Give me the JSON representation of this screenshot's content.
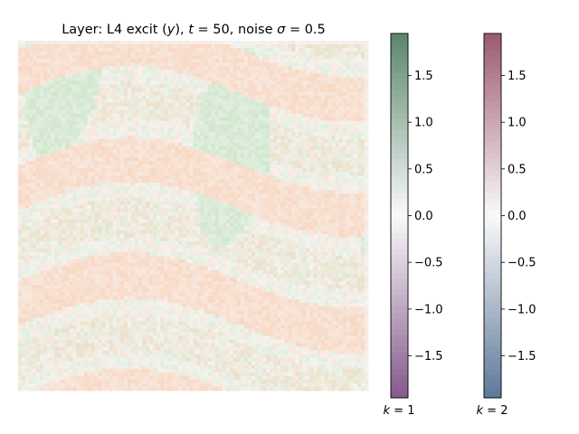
{
  "chart_data": {
    "type": "heatmap",
    "title": "Layer: L4 excit (y), t = 50, noise σ = 0.5",
    "title_parts": {
      "prefix": "Layer: L4 excit (",
      "var": "y",
      "mid1": "), ",
      "t_var": "t",
      "t_eq": " = 50, noise ",
      "sigma_var": "σ",
      "sigma_eq": " = 0.5"
    },
    "grid": false,
    "axes_visible": false,
    "map_grid_size": 96,
    "overlay": "two semi-transparent diverging channels (k = 1 green/purple, k = 2 red/blue) blended over the same map; values mostly weakly positive (about 0 to 0.6)",
    "colorbars": [
      {
        "channel": "k = 1",
        "label_var": "k",
        "label_eq": " = 1",
        "colormap": "PRGn",
        "vmin": -1.95,
        "vmax": 1.95,
        "ticks": [
          1.5,
          1.0,
          0.5,
          0.0,
          -0.5,
          -1.0,
          -1.5
        ],
        "tick_labels": [
          "1.5",
          "1.0",
          "0.5",
          "0.0",
          "−0.5",
          "−1.0",
          "−1.5"
        ],
        "colors": {
          "neg": "#40004b",
          "zero": "#f7f7f7",
          "pos": "#00441b"
        }
      },
      {
        "channel": "k = 2",
        "label_var": "k",
        "label_eq": " = 2",
        "colormap": "RdBu_r",
        "vmin": -1.95,
        "vmax": 1.95,
        "ticks": [
          1.5,
          1.0,
          0.5,
          0.0,
          -0.5,
          -1.0,
          -1.5
        ],
        "tick_labels": [
          "1.5",
          "1.0",
          "0.5",
          "0.0",
          "−0.5",
          "−1.0",
          "−1.5"
        ],
        "colors": {
          "neg": "#053061",
          "zero": "#f7f7f7",
          "pos": "#67001f"
        }
      }
    ]
  }
}
